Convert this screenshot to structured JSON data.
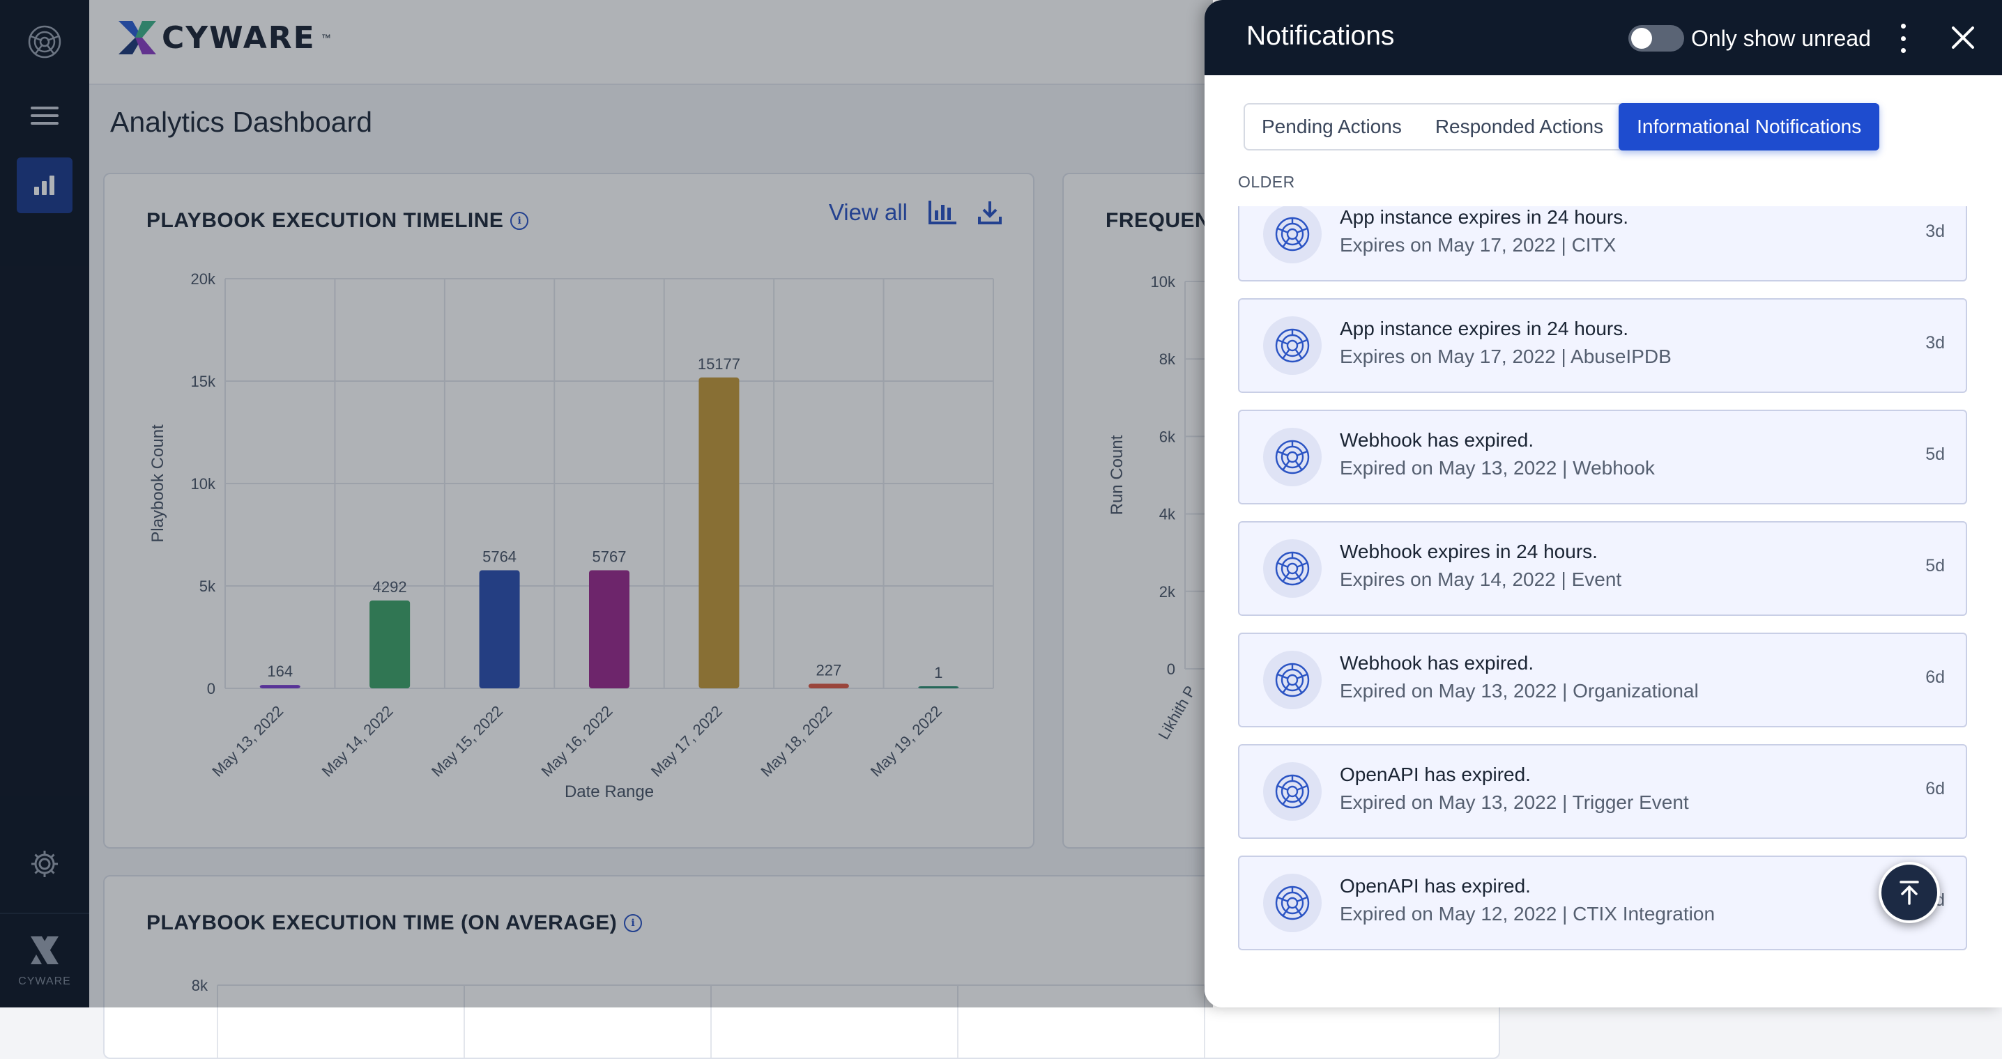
{
  "app": {
    "brand": "CYWARE",
    "tm": "™",
    "rail_brand": "CYWARE"
  },
  "page": {
    "title": "Analytics Dashboard"
  },
  "timeline_card": {
    "title": "PLAYBOOK EXECUTION TIMELINE",
    "view_all": "View all"
  },
  "frequent_card": {
    "title": "FREQUENT"
  },
  "time_card": {
    "title": "PLAYBOOK EXECUTION TIME (ON AVERAGE)"
  },
  "chart_data": [
    {
      "type": "bar",
      "xlabel": "Date Range",
      "ylabel": "Playbook Count",
      "ylim": [
        0,
        20000
      ],
      "yticks": [
        "0",
        "5k",
        "10k",
        "15k",
        "20k"
      ],
      "categories": [
        "May 13, 2022",
        "May 14, 2022",
        "May 15, 2022",
        "May 16, 2022",
        "May 17, 2022",
        "May 18, 2022",
        "May 19, 2022"
      ],
      "values": [
        164,
        4292,
        5764,
        5767,
        15177,
        227,
        1
      ],
      "colors": [
        "#7b3fd0",
        "#3fa56a",
        "#2c4fb0",
        "#9c2a8e",
        "#c49a3a",
        "#e05a45",
        "#2f8f73"
      ],
      "grid": true
    },
    {
      "type": "bar",
      "ylabel": "Run Count",
      "ylim": [
        0,
        10000
      ],
      "yticks": [
        "0",
        "2k",
        "4k",
        "6k",
        "8k",
        "10k"
      ],
      "categories": [
        "Likhith P"
      ],
      "grid": true
    },
    {
      "type": "bar",
      "yticks": [
        "8k"
      ],
      "grid": true
    }
  ],
  "notifications": {
    "title": "Notifications",
    "toggle_label": "Only show unread",
    "tabs": [
      {
        "label": "Pending Actions",
        "active": false
      },
      {
        "label": "Responded Actions",
        "active": false
      },
      {
        "label": "Informational Notifications",
        "active": true
      }
    ],
    "section": "OLDER",
    "items": [
      {
        "title": "App instance expires in 24 hours.",
        "subtitle": "Expires on May 17, 2022 | CITX",
        "time": "3d"
      },
      {
        "title": "App instance expires in 24 hours.",
        "subtitle": "Expires on May 17, 2022 | AbuseIPDB",
        "time": "3d"
      },
      {
        "title": "Webhook has expired.",
        "subtitle": "Expired on May 13, 2022 | Webhook",
        "time": "5d"
      },
      {
        "title": "Webhook expires in 24 hours.",
        "subtitle": "Expires on May 14, 2022 | Event",
        "time": "5d"
      },
      {
        "title": "Webhook has expired.",
        "subtitle": "Expired on May 13, 2022 | Organizational",
        "time": "6d"
      },
      {
        "title": "OpenAPI has expired.",
        "subtitle": "Expired on May 13, 2022 | Trigger Event",
        "time": "6d"
      },
      {
        "title": "OpenAPI has expired.",
        "subtitle": "Expired on May 12, 2022 | CTIX Integration",
        "time": "7d"
      }
    ]
  }
}
